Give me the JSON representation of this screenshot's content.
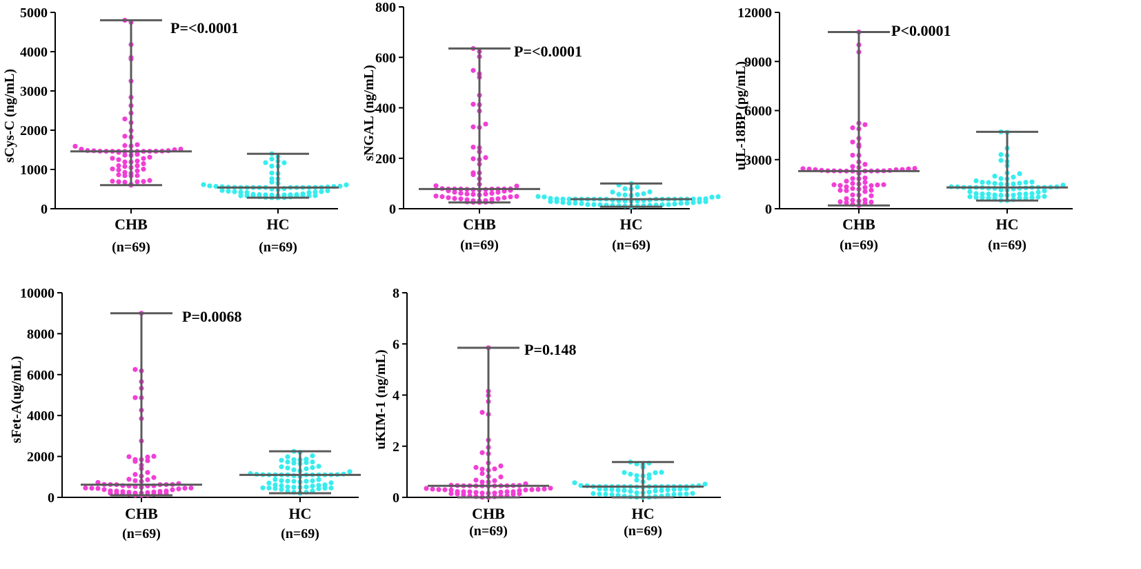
{
  "colors": {
    "group1": "#f03fd6",
    "group2": "#38ecee",
    "bar": "#5a5a5a",
    "axis": "#000000"
  },
  "chart_data": [
    {
      "type": "scatter",
      "subtype": "dot plot with median and range",
      "ylabel": "sCys-C (ng/mL)",
      "ylim": [
        0,
        5000
      ],
      "yticks": [
        0,
        1000,
        2000,
        3000,
        4000,
        5000
      ],
      "p_value": "P=<0.0001",
      "groups": [
        {
          "name": "CHB",
          "n_label": "(n=69)",
          "median": 1460,
          "min": 600,
          "max": 4800
        },
        {
          "name": "HC",
          "n_label": "(n=69)",
          "median": 540,
          "min": 280,
          "max": 1400
        }
      ]
    },
    {
      "type": "scatter",
      "subtype": "dot plot with median and range",
      "ylabel": "sNGAL (ng/mL)",
      "ylim": [
        0,
        800
      ],
      "yticks": [
        0,
        200,
        400,
        600,
        800
      ],
      "p_value": "P=<0.0001",
      "groups": [
        {
          "name": "CHB",
          "n_label": "(n=69)",
          "median": 78,
          "min": 25,
          "max": 635
        },
        {
          "name": "HC",
          "n_label": "(n=69)",
          "median": 38,
          "min": 8,
          "max": 100
        }
      ]
    },
    {
      "type": "scatter",
      "subtype": "dot plot with median and range",
      "ylabel": "uIL-18BP (pg/mL)",
      "ylim": [
        0,
        12000
      ],
      "yticks": [
        0,
        3000,
        6000,
        9000,
        12000
      ],
      "p_value": "P<0.0001",
      "groups": [
        {
          "name": "CHB",
          "n_label": "(n=69)",
          "median": 2300,
          "min": 200,
          "max": 10800
        },
        {
          "name": "HC",
          "n_label": "(n=69)",
          "median": 1300,
          "min": 500,
          "max": 4700
        }
      ]
    },
    {
      "type": "scatter",
      "subtype": "dot plot with median and range",
      "ylabel": "sFet-A(ug/mL)",
      "ylim": [
        0,
        10000
      ],
      "yticks": [
        0,
        2000,
        4000,
        6000,
        8000,
        10000
      ],
      "p_value": "P=0.0068",
      "groups": [
        {
          "name": "CHB",
          "n_label": "(n=69)",
          "median": 620,
          "min": 100,
          "max": 9000
        },
        {
          "name": "HC",
          "n_label": "(n=69)",
          "median": 1100,
          "min": 200,
          "max": 2250
        }
      ]
    },
    {
      "type": "scatter",
      "subtype": "dot plot with median and range",
      "ylabel": "uKIM-1 (ng/mL)",
      "ylim": [
        0,
        8
      ],
      "yticks": [
        0,
        2,
        4,
        6,
        8
      ],
      "p_value": "P=0.148",
      "groups": [
        {
          "name": "CHB",
          "n_label": "(n=69)",
          "median": 0.45,
          "min": 0.0,
          "max": 5.85
        },
        {
          "name": "HC",
          "n_label": "(n=69)",
          "median": 0.42,
          "min": 0.0,
          "max": 1.38
        }
      ]
    }
  ]
}
